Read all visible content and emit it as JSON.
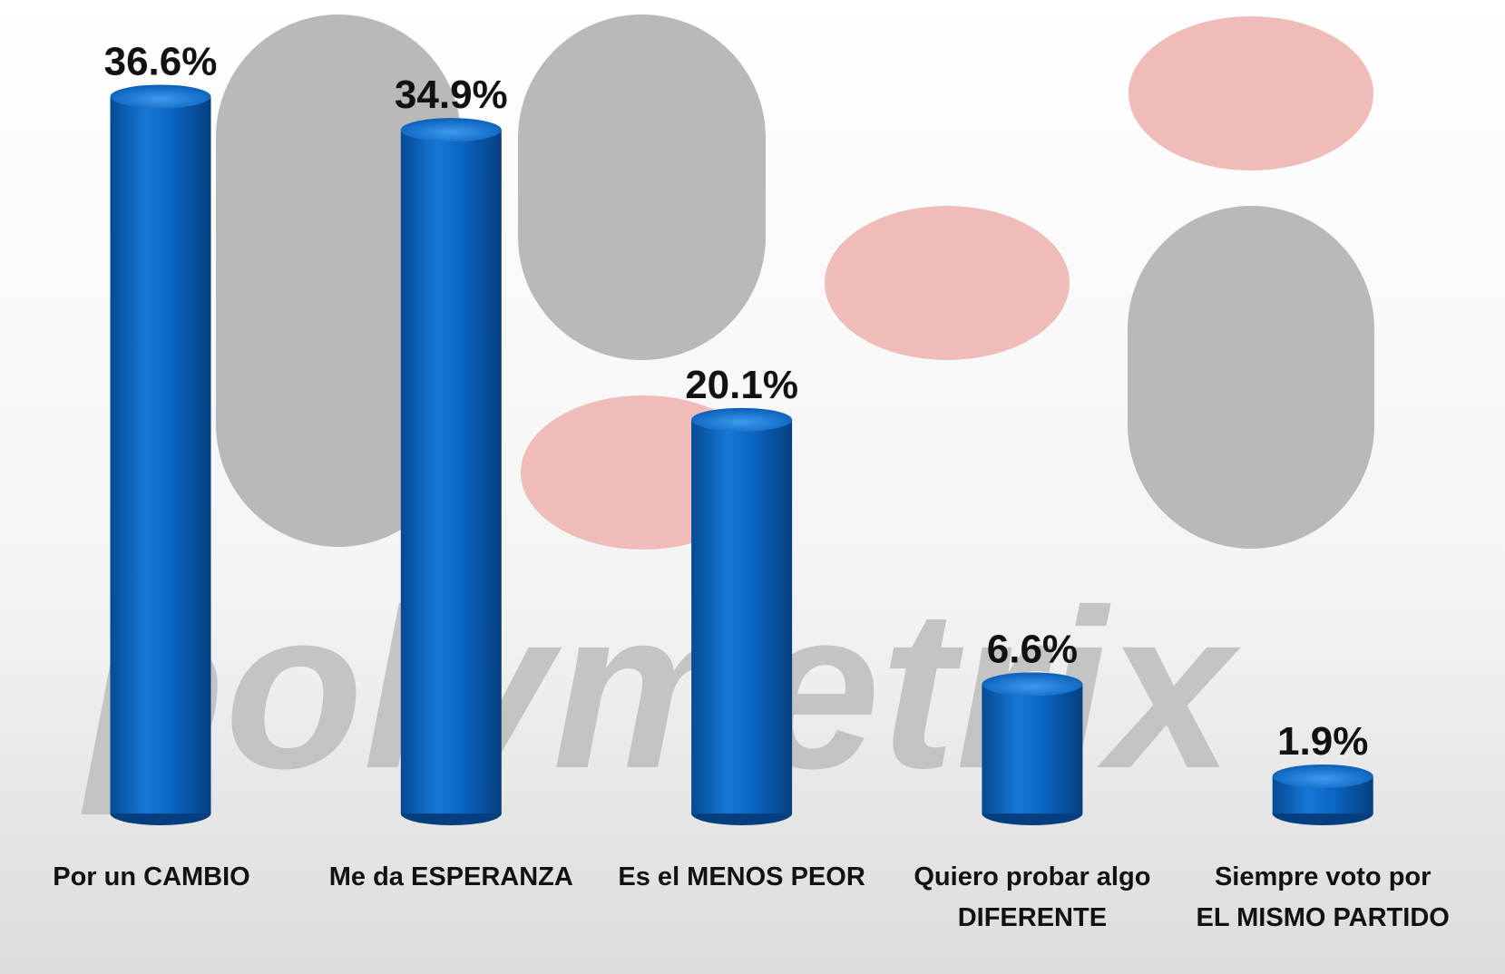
{
  "chart_data": {
    "type": "bar",
    "watermark": "polymetrix",
    "categories": [
      "Por un CAMBIO",
      "Me da ESPERANZA",
      "Es el MENOS PEOR",
      "Quiero probar algo DIFERENTE",
      "Siempre voto por EL MISMO PARTIDO"
    ],
    "values": [
      36.6,
      34.9,
      20.1,
      6.6,
      1.9
    ],
    "value_labels": [
      "36.6%",
      "34.9%",
      "20.1%",
      "6.6%",
      "1.9%"
    ],
    "color": "#0a63c0"
  }
}
